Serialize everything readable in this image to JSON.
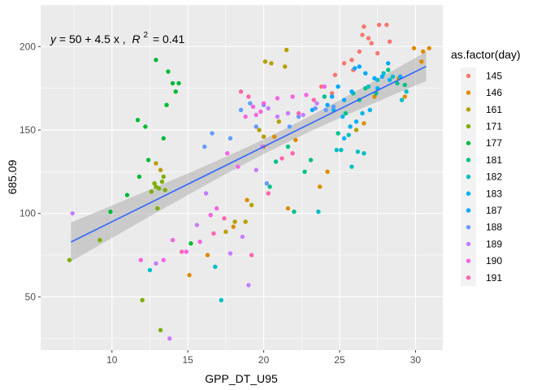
{
  "chart_data": {
    "type": "scatter",
    "title": "",
    "xlabel": "GPP_DT_U95",
    "ylabel": "685.09",
    "xlim": [
      5.3,
      31.8
    ],
    "ylim": [
      18,
      225
    ],
    "x_ticks": [
      10,
      15,
      20,
      25,
      30
    ],
    "y_ticks": [
      50,
      100,
      150,
      200
    ],
    "grid": true,
    "annotation": {
      "lhs": "y",
      "rhs": "= 50 + 4.5 x ,",
      "r2_label": "R",
      "r2_exp": "2",
      "r2_value": "= 0.41"
    },
    "fit_line": {
      "intercept": 50,
      "slope": 4.5,
      "x_range": [
        7.3,
        30.7
      ],
      "color": "#3366ff",
      "ci_color": "#999999"
    },
    "legend": {
      "title": "as.factor(day)",
      "position": "right"
    },
    "series": [
      {
        "name": "145",
        "color": "#F8766D",
        "points": [
          [
            24.7,
            183
          ],
          [
            25.3,
            190
          ],
          [
            25.8,
            192
          ],
          [
            25.9,
            186
          ],
          [
            26.3,
            197
          ],
          [
            26.5,
            207
          ],
          [
            26.6,
            212
          ],
          [
            26.9,
            205
          ],
          [
            27.1,
            202
          ],
          [
            27.5,
            196
          ],
          [
            27.6,
            213
          ],
          [
            28.1,
            213
          ],
          [
            28.3,
            203
          ],
          [
            23.8,
            176
          ],
          [
            24.5,
            172
          ]
        ]
      },
      {
        "name": "146",
        "color": "#DE8C00",
        "points": [
          [
            16.3,
            75
          ],
          [
            18.0,
            92
          ],
          [
            18.9,
            108
          ],
          [
            20.0,
            140
          ],
          [
            20.7,
            146
          ],
          [
            21.6,
            103
          ],
          [
            22.1,
            144
          ],
          [
            23.7,
            116
          ],
          [
            24.2,
            125
          ],
          [
            26.6,
            154
          ],
          [
            27.3,
            170
          ],
          [
            28.9,
            181
          ],
          [
            29.3,
            170
          ],
          [
            29.9,
            199
          ],
          [
            30.4,
            191
          ],
          [
            30.5,
            197
          ],
          [
            30.9,
            199
          ],
          [
            15.1,
            63
          ]
        ]
      },
      {
        "name": "161",
        "color": "#B79F00",
        "points": [
          [
            17.5,
            89
          ],
          [
            18.1,
            95
          ],
          [
            18.8,
            95
          ],
          [
            19.2,
            105
          ],
          [
            19.7,
            150
          ],
          [
            20.0,
            146
          ],
          [
            20.1,
            191
          ],
          [
            20.5,
            190
          ],
          [
            21.0,
            155
          ],
          [
            21.4,
            188
          ],
          [
            21.5,
            198
          ],
          [
            25.7,
            152
          ],
          [
            26.1,
            150
          ],
          [
            12.9,
            130
          ],
          [
            13.2,
            126
          ]
        ]
      },
      {
        "name": "171",
        "color": "#7CAE00",
        "points": [
          [
            7.2,
            72
          ],
          [
            9.2,
            84
          ],
          [
            12.0,
            48
          ],
          [
            12.6,
            113
          ],
          [
            12.8,
            118
          ],
          [
            12.9,
            116
          ],
          [
            13.1,
            115
          ],
          [
            13.3,
            119
          ],
          [
            13.5,
            114
          ],
          [
            13.0,
            103
          ],
          [
            13.2,
            30
          ],
          [
            13.4,
            122
          ]
        ]
      },
      {
        "name": "177",
        "color": "#00BA38",
        "points": [
          [
            9.9,
            101
          ],
          [
            11.0,
            111
          ],
          [
            11.7,
            156
          ],
          [
            12.2,
            152
          ],
          [
            12.4,
            132
          ],
          [
            12.9,
            192
          ],
          [
            13.4,
            145
          ],
          [
            13.7,
            185
          ],
          [
            13.6,
            165
          ],
          [
            14.0,
            178
          ],
          [
            14.2,
            173
          ],
          [
            14.4,
            178
          ],
          [
            15.2,
            82
          ],
          [
            11.8,
            122
          ]
        ]
      },
      {
        "name": "181",
        "color": "#00C08B",
        "points": [
          [
            20.4,
            116
          ],
          [
            20.8,
            131
          ],
          [
            21.6,
            140
          ],
          [
            22.0,
            101
          ],
          [
            22.7,
            125
          ],
          [
            23.1,
            132
          ],
          [
            24.0,
            170
          ],
          [
            24.9,
            148
          ],
          [
            25.4,
            160
          ],
          [
            25.9,
            172
          ],
          [
            26.3,
            168
          ],
          [
            26.7,
            175
          ],
          [
            27.4,
            172
          ],
          [
            28.2,
            186
          ],
          [
            28.8,
            178
          ],
          [
            29.3,
            177
          ]
        ]
      },
      {
        "name": "182",
        "color": "#00BFC4",
        "points": [
          [
            12.5,
            66
          ],
          [
            16.8,
            68
          ],
          [
            17.2,
            48
          ],
          [
            23.6,
            101
          ],
          [
            24.8,
            138
          ],
          [
            25.1,
            138
          ],
          [
            25.8,
            128
          ],
          [
            26.2,
            137
          ],
          [
            26.6,
            136
          ],
          [
            26.9,
            176
          ],
          [
            27.5,
            180
          ],
          [
            27.9,
            184
          ],
          [
            28.5,
            182
          ],
          [
            29.1,
            168
          ],
          [
            29.4,
            173
          ],
          [
            25.6,
            147
          ]
        ]
      },
      {
        "name": "183",
        "color": "#00B4F0",
        "points": [
          [
            24.6,
            162
          ],
          [
            25.3,
            145
          ],
          [
            25.7,
            152
          ],
          [
            26.1,
            155
          ],
          [
            26.5,
            160
          ],
          [
            27.0,
            162
          ],
          [
            27.5,
            175
          ],
          [
            28.3,
            180
          ],
          [
            25.2,
            158
          ]
        ]
      },
      {
        "name": "187",
        "color": "#00A9FF",
        "points": [
          [
            24.2,
            165
          ],
          [
            24.5,
            170
          ],
          [
            24.9,
            176
          ],
          [
            25.3,
            168
          ],
          [
            25.8,
            173
          ],
          [
            26.0,
            187
          ],
          [
            26.3,
            188
          ],
          [
            26.7,
            184
          ],
          [
            27.3,
            181
          ],
          [
            27.8,
            182
          ],
          [
            28.2,
            190
          ],
          [
            29.0,
            182
          ],
          [
            23.2,
            162
          ]
        ]
      },
      {
        "name": "188",
        "color": "#619CFF",
        "points": [
          [
            16.1,
            140
          ],
          [
            16.6,
            148
          ],
          [
            17.8,
            145
          ],
          [
            18.5,
            162
          ],
          [
            19.1,
            166
          ],
          [
            19.5,
            152
          ],
          [
            20.0,
            165
          ],
          [
            20.2,
            118
          ],
          [
            21.7,
            152
          ],
          [
            22.3,
            158
          ],
          [
            23.4,
            163
          ],
          [
            24.1,
            162
          ],
          [
            24.6,
            164
          ]
        ]
      },
      {
        "name": "189",
        "color": "#C77CFF",
        "points": [
          [
            7.4,
            100
          ],
          [
            12.9,
            70
          ],
          [
            13.8,
            25
          ],
          [
            15.6,
            93
          ],
          [
            16.2,
            112
          ],
          [
            17.8,
            76
          ],
          [
            18.6,
            86
          ],
          [
            19.0,
            57
          ],
          [
            19.5,
            126
          ],
          [
            19.9,
            140
          ],
          [
            20.3,
            163
          ],
          [
            20.9,
            158
          ],
          [
            21.6,
            160
          ],
          [
            22.6,
            159
          ],
          [
            23.5,
            166
          ]
        ]
      },
      {
        "name": "190",
        "color": "#F564E3",
        "points": [
          [
            11.9,
            72
          ],
          [
            13.4,
            72
          ],
          [
            14.0,
            84
          ],
          [
            14.9,
            77
          ],
          [
            15.8,
            83
          ],
          [
            16.5,
            99
          ],
          [
            16.9,
            103
          ],
          [
            17.6,
            136
          ],
          [
            18.3,
            128
          ],
          [
            18.8,
            158
          ],
          [
            19.3,
            164
          ],
          [
            19.5,
            159
          ],
          [
            19.8,
            161
          ],
          [
            20.0,
            166
          ],
          [
            20.9,
            169
          ],
          [
            21.9,
            170
          ],
          [
            22.8,
            171
          ],
          [
            24.0,
            176
          ]
        ]
      },
      {
        "name": "191",
        "color": "#FF64B0",
        "points": [
          [
            14.6,
            77
          ],
          [
            16.7,
            88
          ],
          [
            17.4,
            97
          ],
          [
            19.2,
            75
          ],
          [
            20.3,
            112
          ],
          [
            21.2,
            133
          ],
          [
            21.9,
            136
          ],
          [
            22.3,
            160
          ],
          [
            23.3,
            168
          ],
          [
            19.0,
            170
          ],
          [
            18.5,
            173
          ]
        ]
      }
    ]
  }
}
